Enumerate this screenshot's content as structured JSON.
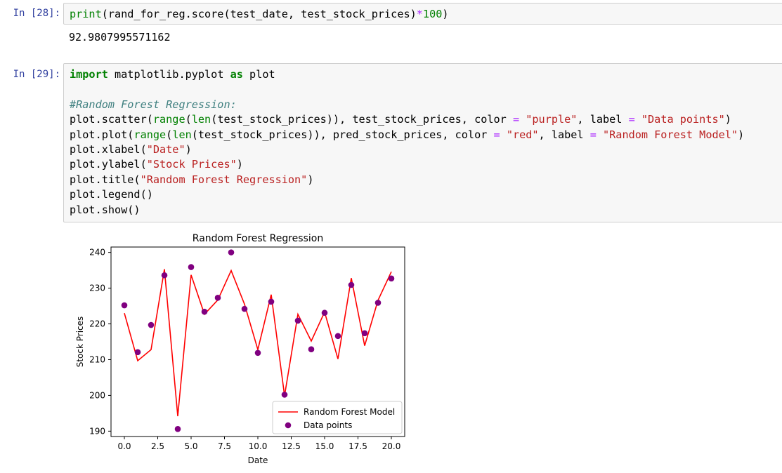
{
  "cells": [
    {
      "prompt": "In [28]:",
      "code_lines": [
        [
          {
            "t": "print",
            "c": "bi"
          },
          {
            "t": "(rand_for_reg.score(test_date, test_stock_prices)"
          },
          {
            "t": "*",
            "c": "op"
          },
          {
            "t": "100",
            "c": "num"
          },
          {
            "t": ")"
          }
        ]
      ],
      "output": "92.9807995571162"
    },
    {
      "prompt": "In [29]:",
      "code_lines": [
        [
          {
            "t": "import",
            "c": "kw"
          },
          {
            "t": " matplotlib.pyplot "
          },
          {
            "t": "as",
            "c": "kw"
          },
          {
            "t": " plot"
          }
        ],
        [],
        [
          {
            "t": "#Random Forest Regression:",
            "c": "com"
          }
        ],
        [
          {
            "t": "plot.scatter("
          },
          {
            "t": "range",
            "c": "bi"
          },
          {
            "t": "("
          },
          {
            "t": "len",
            "c": "bi"
          },
          {
            "t": "(test_stock_prices)), test_stock_prices, color "
          },
          {
            "t": "=",
            "c": "op"
          },
          {
            "t": " "
          },
          {
            "t": "\"purple\"",
            "c": "str"
          },
          {
            "t": ", label "
          },
          {
            "t": "=",
            "c": "op"
          },
          {
            "t": " "
          },
          {
            "t": "\"Data points\"",
            "c": "str"
          },
          {
            "t": ")"
          }
        ],
        [
          {
            "t": "plot.plot("
          },
          {
            "t": "range",
            "c": "bi"
          },
          {
            "t": "("
          },
          {
            "t": "len",
            "c": "bi"
          },
          {
            "t": "(test_stock_prices)), pred_stock_prices, color "
          },
          {
            "t": "=",
            "c": "op"
          },
          {
            "t": " "
          },
          {
            "t": "\"red\"",
            "c": "str"
          },
          {
            "t": ", label "
          },
          {
            "t": "=",
            "c": "op"
          },
          {
            "t": " "
          },
          {
            "t": "\"Random Forest Model\"",
            "c": "str"
          },
          {
            "t": ")"
          }
        ],
        [
          {
            "t": "plot.xlabel("
          },
          {
            "t": "\"Date\"",
            "c": "str"
          },
          {
            "t": ")"
          }
        ],
        [
          {
            "t": "plot.ylabel("
          },
          {
            "t": "\"Stock Prices\"",
            "c": "str"
          },
          {
            "t": ")"
          }
        ],
        [
          {
            "t": "plot.title("
          },
          {
            "t": "\"Random Forest Regression\"",
            "c": "str"
          },
          {
            "t": ")"
          }
        ],
        [
          {
            "t": "plot.legend()"
          }
        ],
        [
          {
            "t": "plot.show()"
          }
        ]
      ]
    }
  ],
  "chart_data": {
    "type": "scatter",
    "title": "Random Forest Regression",
    "xlabel": "Date",
    "ylabel": "Stock Prices",
    "xlim": [
      -1,
      21
    ],
    "ylim": [
      188.5,
      241.5
    ],
    "xticks": [
      "0.0",
      "2.5",
      "5.0",
      "7.5",
      "10.0",
      "12.5",
      "15.0",
      "17.5",
      "20.0"
    ],
    "yticks": [
      "190",
      "200",
      "210",
      "220",
      "230",
      "240"
    ],
    "legend_position": "lower-right",
    "series": [
      {
        "name": "Random Forest Model",
        "kind": "line",
        "color": "#ff0000",
        "x": [
          0,
          1,
          2,
          3,
          4,
          5,
          6,
          7,
          8,
          9,
          10,
          11,
          12,
          13,
          14,
          15,
          16,
          17,
          18,
          19,
          20
        ],
        "y": [
          223,
          209.7,
          212.8,
          235.3,
          194.2,
          233.7,
          222.7,
          226.7,
          234.9,
          225.5,
          212.8,
          228.2,
          199.9,
          222.7,
          215.2,
          223.3,
          210.2,
          232.8,
          213.9,
          226.6,
          234.6
        ]
      },
      {
        "name": "Data points",
        "kind": "scatter",
        "color": "#800080",
        "x": [
          0,
          1,
          2,
          3,
          4,
          5,
          6,
          7,
          8,
          9,
          10,
          11,
          12,
          13,
          14,
          15,
          16,
          17,
          18,
          19,
          20
        ],
        "y": [
          225.2,
          212.1,
          219.7,
          233.6,
          190.6,
          235.9,
          223.4,
          227.3,
          240,
          224.2,
          211.9,
          226.2,
          200.2,
          220.9,
          212.9,
          223.1,
          216.6,
          230.9,
          217.4,
          225.9,
          232.7
        ]
      }
    ]
  }
}
